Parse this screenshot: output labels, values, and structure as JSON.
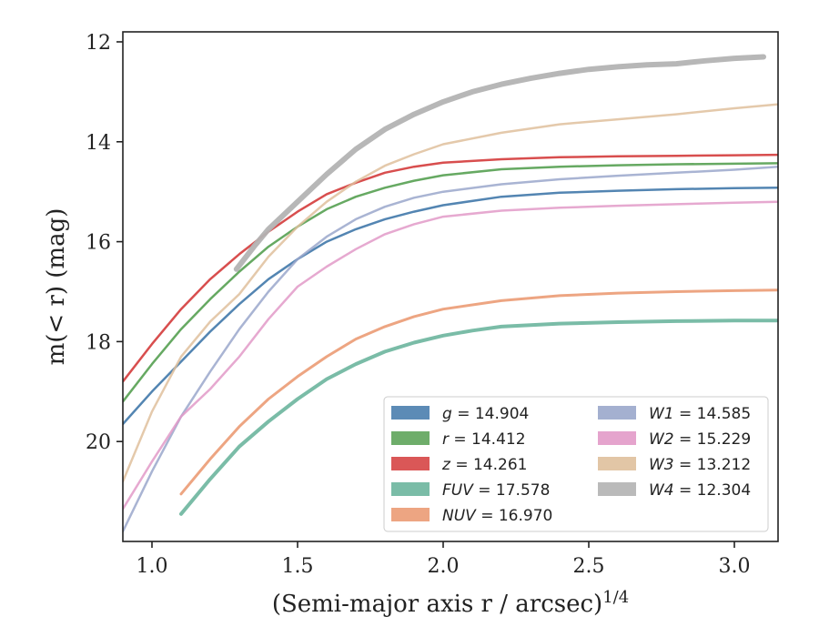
{
  "chart_data": {
    "type": "line",
    "xlabel": "(Semi-major axis r / arcsec)",
    "xlabel_exponent": "1/4",
    "ylabel": "m(< r) (mag)",
    "xlim": [
      0.9,
      3.15
    ],
    "ylim": [
      22.0,
      11.8
    ],
    "y_inverted": true,
    "grid": false,
    "legend_placement": "lower right",
    "x_ticks": [
      "1.0",
      "1.5",
      "2.0",
      "2.5",
      "3.0"
    ],
    "y_ticks": [
      "12",
      "14",
      "16",
      "18",
      "20"
    ],
    "series": [
      {
        "name": "g = 14.904",
        "legend_symbol": "g",
        "legend_value": "14.904",
        "color": "#4a7eae",
        "width": 2.5,
        "opacity": 0.95,
        "x": [
          0.9,
          1.0,
          1.1,
          1.2,
          1.3,
          1.4,
          1.5,
          1.6,
          1.7,
          1.8,
          1.9,
          2.0,
          2.2,
          2.4,
          2.6,
          2.8,
          3.0,
          3.15
        ],
        "y": [
          19.65,
          19.0,
          18.4,
          17.8,
          17.25,
          16.75,
          16.35,
          16.0,
          15.75,
          15.55,
          15.4,
          15.27,
          15.1,
          15.02,
          14.98,
          14.95,
          14.93,
          14.92
        ]
      },
      {
        "name": "r = 14.412",
        "legend_symbol": "r",
        "legend_value": "14.412",
        "color": "#5ea45a",
        "width": 2.5,
        "opacity": 0.95,
        "x": [
          0.9,
          1.0,
          1.1,
          1.2,
          1.3,
          1.4,
          1.5,
          1.6,
          1.7,
          1.8,
          1.9,
          2.0,
          2.2,
          2.4,
          2.6,
          2.8,
          3.0,
          3.15
        ],
        "y": [
          19.2,
          18.45,
          17.75,
          17.15,
          16.6,
          16.1,
          15.7,
          15.35,
          15.1,
          14.92,
          14.78,
          14.67,
          14.55,
          14.5,
          14.47,
          14.45,
          14.44,
          14.43
        ]
      },
      {
        "name": "z = 14.261",
        "legend_symbol": "z",
        "legend_value": "14.261",
        "color": "#d64545",
        "width": 2.5,
        "opacity": 0.95,
        "x": [
          0.9,
          1.0,
          1.1,
          1.2,
          1.3,
          1.4,
          1.5,
          1.6,
          1.7,
          1.8,
          1.9,
          2.0,
          2.2,
          2.4,
          2.6,
          2.8,
          3.0,
          3.15
        ],
        "y": [
          18.8,
          18.05,
          17.35,
          16.75,
          16.25,
          15.8,
          15.4,
          15.05,
          14.82,
          14.62,
          14.5,
          14.42,
          14.35,
          14.31,
          14.29,
          14.28,
          14.27,
          14.26
        ]
      },
      {
        "name": "FUV = 17.578",
        "legend_symbol": "FUV",
        "legend_value": "17.578",
        "color": "#6bb59d",
        "width": 4,
        "opacity": 0.9,
        "x": [
          1.1,
          1.2,
          1.3,
          1.4,
          1.5,
          1.6,
          1.7,
          1.8,
          1.9,
          2.0,
          2.1,
          2.2,
          2.4,
          2.6,
          2.8,
          3.0,
          3.15
        ],
        "y": [
          21.45,
          20.75,
          20.1,
          19.6,
          19.15,
          18.75,
          18.45,
          18.2,
          18.02,
          17.88,
          17.78,
          17.7,
          17.64,
          17.61,
          17.59,
          17.58,
          17.58
        ]
      },
      {
        "name": "NUV = 16.970",
        "legend_symbol": "NUV",
        "legend_value": "16.970",
        "color": "#eb9b74",
        "width": 3,
        "opacity": 0.9,
        "x": [
          1.1,
          1.2,
          1.3,
          1.4,
          1.5,
          1.6,
          1.7,
          1.8,
          1.9,
          2.0,
          2.2,
          2.4,
          2.6,
          2.8,
          3.0,
          3.15
        ],
        "y": [
          21.05,
          20.35,
          19.7,
          19.15,
          18.7,
          18.3,
          17.95,
          17.7,
          17.5,
          17.35,
          17.18,
          17.08,
          17.03,
          17.0,
          16.98,
          16.97
        ]
      },
      {
        "name": "W1 = 14.585",
        "legend_symbol": "W1",
        "legend_value": "14.585",
        "color": "#9aa7cb",
        "width": 2.5,
        "opacity": 0.85,
        "x": [
          0.9,
          1.0,
          1.1,
          1.2,
          1.3,
          1.4,
          1.5,
          1.6,
          1.7,
          1.8,
          1.9,
          2.0,
          2.2,
          2.4,
          2.6,
          2.8,
          3.0,
          3.15
        ],
        "y": [
          21.8,
          20.6,
          19.5,
          18.6,
          17.75,
          17.0,
          16.35,
          15.9,
          15.55,
          15.3,
          15.12,
          15.0,
          14.85,
          14.75,
          14.68,
          14.62,
          14.56,
          14.5
        ]
      },
      {
        "name": "W2 = 15.229",
        "legend_symbol": "W2",
        "legend_value": "15.229",
        "color": "#e29ac8",
        "width": 2.5,
        "opacity": 0.85,
        "x": [
          0.9,
          1.0,
          1.1,
          1.2,
          1.3,
          1.4,
          1.5,
          1.6,
          1.7,
          1.8,
          1.9,
          2.0,
          2.2,
          2.4,
          2.6,
          2.8,
          3.0,
          3.15
        ],
        "y": [
          21.35,
          20.4,
          19.5,
          18.95,
          18.3,
          17.55,
          16.9,
          16.5,
          16.15,
          15.85,
          15.65,
          15.5,
          15.38,
          15.32,
          15.28,
          15.25,
          15.22,
          15.2
        ]
      },
      {
        "name": "W3 = 13.212",
        "legend_symbol": "W3",
        "legend_value": "13.212",
        "color": "#dfc09c",
        "width": 2.5,
        "opacity": 0.85,
        "x": [
          0.9,
          1.0,
          1.1,
          1.2,
          1.3,
          1.4,
          1.5,
          1.6,
          1.7,
          1.8,
          1.9,
          2.0,
          2.2,
          2.4,
          2.6,
          2.8,
          3.0,
          3.15
        ],
        "y": [
          20.8,
          19.4,
          18.3,
          17.6,
          17.05,
          16.3,
          15.7,
          15.2,
          14.8,
          14.48,
          14.25,
          14.05,
          13.82,
          13.65,
          13.55,
          13.45,
          13.33,
          13.25
        ]
      },
      {
        "name": "W4 = 12.304",
        "legend_symbol": "W4",
        "legend_value": "12.304",
        "color": "#b3b3b3",
        "width": 6,
        "opacity": 0.95,
        "x": [
          1.29,
          1.35,
          1.4,
          1.5,
          1.6,
          1.7,
          1.8,
          1.9,
          2.0,
          2.1,
          2.2,
          2.3,
          2.4,
          2.5,
          2.6,
          2.7,
          2.8,
          2.9,
          3.0,
          3.1
        ],
        "y": [
          16.55,
          16.1,
          15.75,
          15.2,
          14.65,
          14.15,
          13.75,
          13.45,
          13.2,
          13.0,
          12.85,
          12.73,
          12.63,
          12.55,
          12.5,
          12.46,
          12.44,
          12.38,
          12.33,
          12.3
        ]
      }
    ]
  }
}
